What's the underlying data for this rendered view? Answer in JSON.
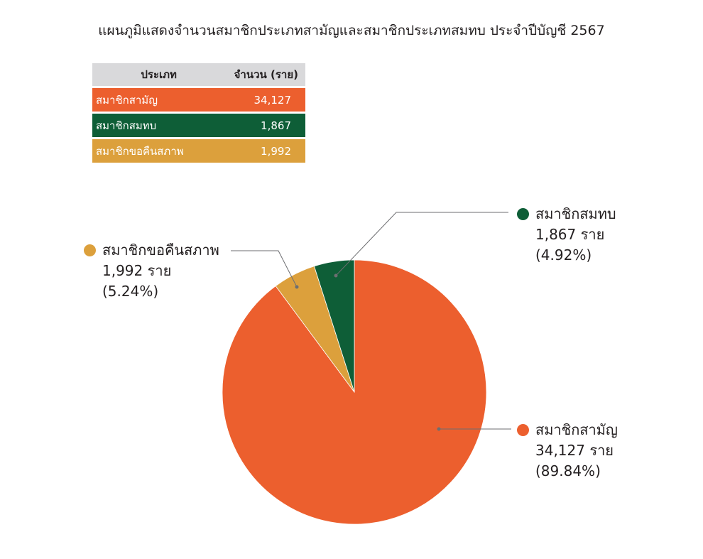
{
  "title": "แผนภูมิแสดงจำนวนสมาชิกประเภทสามัญและสมาชิกประเภทสมทบ ประจำปีบัญชี 2567",
  "table": {
    "headers": [
      "ประเภท",
      "จำนวน (ราย)"
    ],
    "rows": [
      {
        "type": "สมาชิกสามัญ",
        "count": "34,127",
        "color": "#ec5f2e"
      },
      {
        "type": "สมาชิกสมทบ",
        "count": "1,867",
        "color": "#0e5e37"
      },
      {
        "type": "สมาชิกขอคืนสภาพ",
        "count": "1,992",
        "color": "#dca03c"
      }
    ]
  },
  "chart_data": {
    "type": "pie",
    "title": "แผนภูมิแสดงจำนวนสมาชิกประเภทสามัญและสมาชิกประเภทสมทบ ประจำปีบัญชี 2567",
    "unit": "ราย",
    "start": "12 o'clock, clockwise",
    "slices": [
      {
        "label": "สมาชิกสามัญ",
        "value": 34127,
        "value_text": "34,127 ราย",
        "percent_text": "(89.84%)",
        "color": "#ec5f2e"
      },
      {
        "label": "สมาชิกขอคืนสภาพ",
        "value": 1992,
        "value_text": "1,992 ราย",
        "percent_text": "(5.24%)",
        "color": "#dca03c"
      },
      {
        "label": "สมาชิกสมทบ",
        "value": 1867,
        "value_text": "1,867 ราย",
        "percent_text": "(4.92%)",
        "color": "#0e5e37"
      }
    ]
  }
}
